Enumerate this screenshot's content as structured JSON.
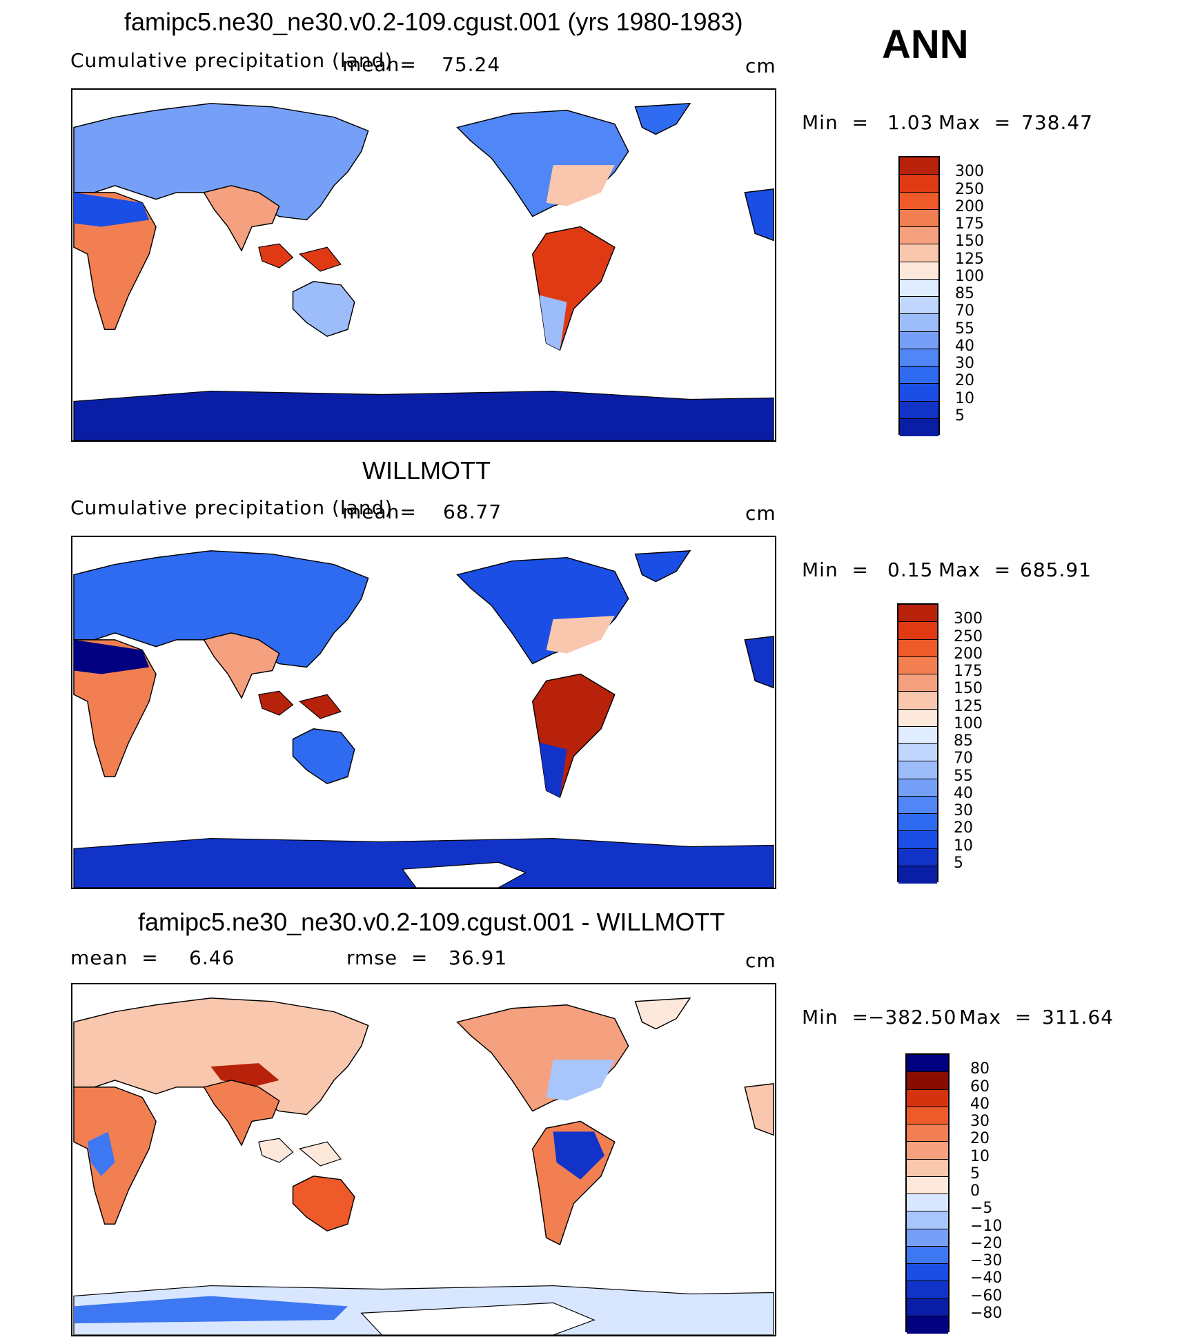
{
  "season": "ANN",
  "colors": {
    "pos": [
      "#000080",
      "#0a1ea5",
      "#1133c8",
      "#1a4ee5",
      "#2f6bf0",
      "#5086f5",
      "#76a0f7",
      "#9dbcfa",
      "#c1d6fd",
      "#e0ecff",
      "#fde8dc",
      "#f9c7ad",
      "#f5a07e",
      "#f27f52",
      "#ef5a2a",
      "#e03a15",
      "#b8220a",
      "#8a0c00"
    ],
    "diff": [
      "#000080",
      "#0a1ea5",
      "#1133c8",
      "#1a4ee5",
      "#3e77f2",
      "#76a0f7",
      "#a8c6fb",
      "#d8e7ff",
      "#fde8dc",
      "#f9c7ad",
      "#f5a07e",
      "#f27f52",
      "#ef5a2a",
      "#d4330e",
      "#8a0c00"
    ]
  },
  "panels": [
    {
      "title": "famipc5.ne30_ne30.v0.2-109.cgust.001 (yrs 1980-1983)",
      "left_label": "Cumulative precipitation (land)",
      "mean_label": "mean=",
      "mean_value": "75.24",
      "units": "cm",
      "min_label": "Min  =",
      "min_value": "1.03",
      "max_label": "Max  =",
      "max_value": "738.47",
      "levels": [
        "300",
        "250",
        "200",
        "175",
        "150",
        "125",
        "100",
        "85",
        "70",
        "55",
        "40",
        "30",
        "20",
        "10",
        "5"
      ]
    },
    {
      "title": "WILLMOTT",
      "left_label": "Cumulative precipitation (land)",
      "mean_label": "mean=",
      "mean_value": "68.77",
      "units": "cm",
      "min_label": "Min  =",
      "min_value": "0.15",
      "max_label": "Max  =",
      "max_value": "685.91",
      "levels": [
        "300",
        "250",
        "200",
        "175",
        "150",
        "125",
        "100",
        "85",
        "70",
        "55",
        "40",
        "30",
        "20",
        "10",
        "5"
      ]
    },
    {
      "title": "famipc5.ne30_ne30.v0.2-109.cgust.001 - WILLMOTT",
      "left_label": "mean  =",
      "mean_value": "6.46",
      "rmse_label": "rmse  =",
      "rmse_value": "36.91",
      "units": "cm",
      "min_label": "Min  =",
      "min_value": "−382.50",
      "max_label": "Max  =",
      "max_value": "311.64",
      "levels": [
        "80",
        "60",
        "40",
        "30",
        "20",
        "10",
        "5",
        "0",
        "−5",
        "−10",
        "−20",
        "−30",
        "−40",
        "−60",
        "−80"
      ]
    }
  ]
}
